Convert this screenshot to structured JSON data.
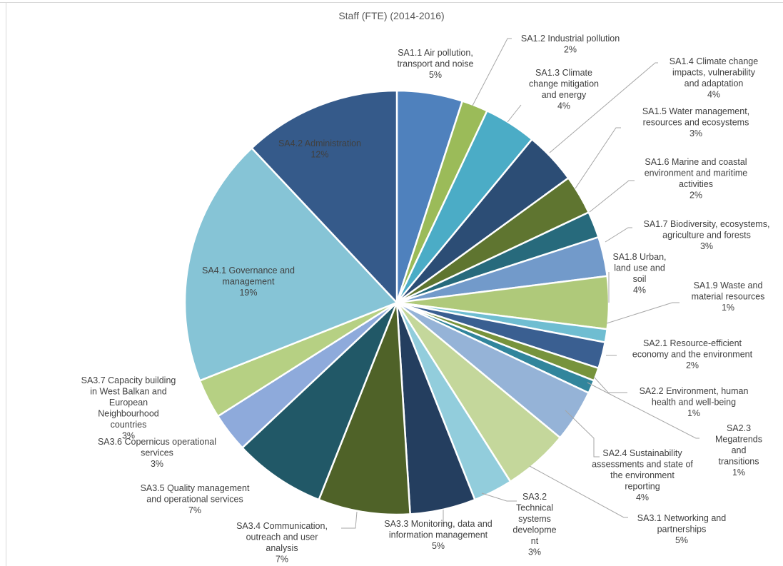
{
  "chart_data": {
    "type": "pie",
    "title": "Staff (FTE) (2014-2016)",
    "slices": [
      {
        "label": "SA1.1 Air pollution, transport and noise",
        "lines": [
          "SA1.1 Air pollution,",
          "transport and noise",
          "5%"
        ],
        "value": 5,
        "color": "#4f81bd"
      },
      {
        "label": "SA1.2 Industrial pollution",
        "lines": [
          "SA1.2 Industrial pollution",
          "2%"
        ],
        "value": 2,
        "color": "#9bbb59"
      },
      {
        "label": "SA1.3 Climate change mitigation and energy",
        "lines": [
          "SA1.3 Climate",
          "change mitigation",
          "and energy",
          "4%"
        ],
        "value": 4,
        "color": "#4bacc6"
      },
      {
        "label": "SA1.4 Climate change impacts, vulnerability and adaptation",
        "lines": [
          "SA1.4 Climate change",
          "impacts, vulnerability",
          "and adaptation",
          "4%"
        ],
        "value": 4,
        "color": "#2c4d75"
      },
      {
        "label": "SA1.5 Water management, resources and ecosystems",
        "lines": [
          "SA1.5 Water management,",
          "resources and ecosystems",
          "3%"
        ],
        "value": 3,
        "color": "#5f7530"
      },
      {
        "label": "SA1.6 Marine and coastal environment and maritime activities",
        "lines": [
          "SA1.6 Marine and coastal",
          "environment and maritime",
          "activities",
          "2%"
        ],
        "value": 2,
        "color": "#276a7c"
      },
      {
        "label": "SA1.7 Biodiversity, ecosystems, agriculture and forests",
        "lines": [
          "SA1.7 Biodiversity, ecosystems,",
          "agriculture and forests",
          "3%"
        ],
        "value": 3,
        "color": "#729aca"
      },
      {
        "label": "SA1.8 Urban, land use and soil",
        "lines": [
          "SA1.8 Urban,",
          "land use and",
          "soil",
          "4%"
        ],
        "value": 4,
        "color": "#afc97a"
      },
      {
        "label": "SA1.9 Waste and material resources",
        "lines": [
          "SA1.9 Waste and",
          "material resources",
          "1%"
        ],
        "value": 1,
        "color": "#6fbdd1"
      },
      {
        "label": "SA2.1 Resource-efficient economy and the environment",
        "lines": [
          "SA2.1 Resource-efficient",
          "economy and the environment",
          "2%"
        ],
        "value": 2,
        "color": "#3a5f91"
      },
      {
        "label": "SA2.2 Environment, human health and well-being",
        "lines": [
          "SA2.2 Environment, human",
          "health and well-being",
          "1%"
        ],
        "value": 1,
        "color": "#77933c"
      },
      {
        "label": "SA2.3 Megatrends and transitions",
        "lines": [
          "SA2.3",
          "Megatrends",
          "and",
          "transitions",
          "1%"
        ],
        "value": 1,
        "color": "#31859c"
      },
      {
        "label": "SA2.4 Sustainability assessments and state of the environment reporting",
        "lines": [
          "SA2.4 Sustainability",
          "assessments and state of",
          "the environment",
          "reporting",
          "4%"
        ],
        "value": 4,
        "color": "#95b3d7"
      },
      {
        "label": "SA3.1 Networking and partnerships",
        "lines": [
          "SA3.1 Networking and",
          "partnerships",
          "5%"
        ],
        "value": 5,
        "color": "#c4d79b"
      },
      {
        "label": "SA3.2 Technical systems development",
        "lines": [
          "SA3.2",
          "Technical",
          "systems",
          "developme",
          "nt",
          "3%"
        ],
        "value": 3,
        "color": "#92cddc"
      },
      {
        "label": "SA3.3 Monitoring, data and information management",
        "lines": [
          "SA3.3 Monitoring, data and",
          "information management",
          "5%"
        ],
        "value": 5,
        "color": "#243e5f"
      },
      {
        "label": "SA3.4 Communication, outreach and user analysis",
        "lines": [
          "SA3.4 Communication,",
          "outreach and user",
          "analysis",
          "7%"
        ],
        "value": 7,
        "color": "#4f6228"
      },
      {
        "label": "SA3.5 Quality management and operational services",
        "lines": [
          "SA3.5 Quality management",
          "and operational services",
          "7%"
        ],
        "value": 7,
        "color": "#215867"
      },
      {
        "label": "SA3.6 Copernicus operational services",
        "lines": [
          "SA3.6 Copernicus operational",
          "services",
          "3%"
        ],
        "value": 3,
        "color": "#8eaadb"
      },
      {
        "label": "SA3.7 Capacity building in West Balkan and European Neighbourhood countries",
        "lines": [
          "SA3.7 Capacity building",
          "in West Balkan and",
          "European",
          "Neighbourhood",
          "countries",
          "3%"
        ],
        "value": 3,
        "color": "#b6d083"
      },
      {
        "label": "SA4.1 Governance and management",
        "lines": [
          "SA4.1 Governance and",
          "management",
          "19%"
        ],
        "value": 19,
        "color": "#86c4d6"
      },
      {
        "label": "SA4.2 Administration",
        "lines": [
          "SA4.2 Administration",
          "12%"
        ],
        "value": 12,
        "color": "#355a8a"
      }
    ]
  }
}
